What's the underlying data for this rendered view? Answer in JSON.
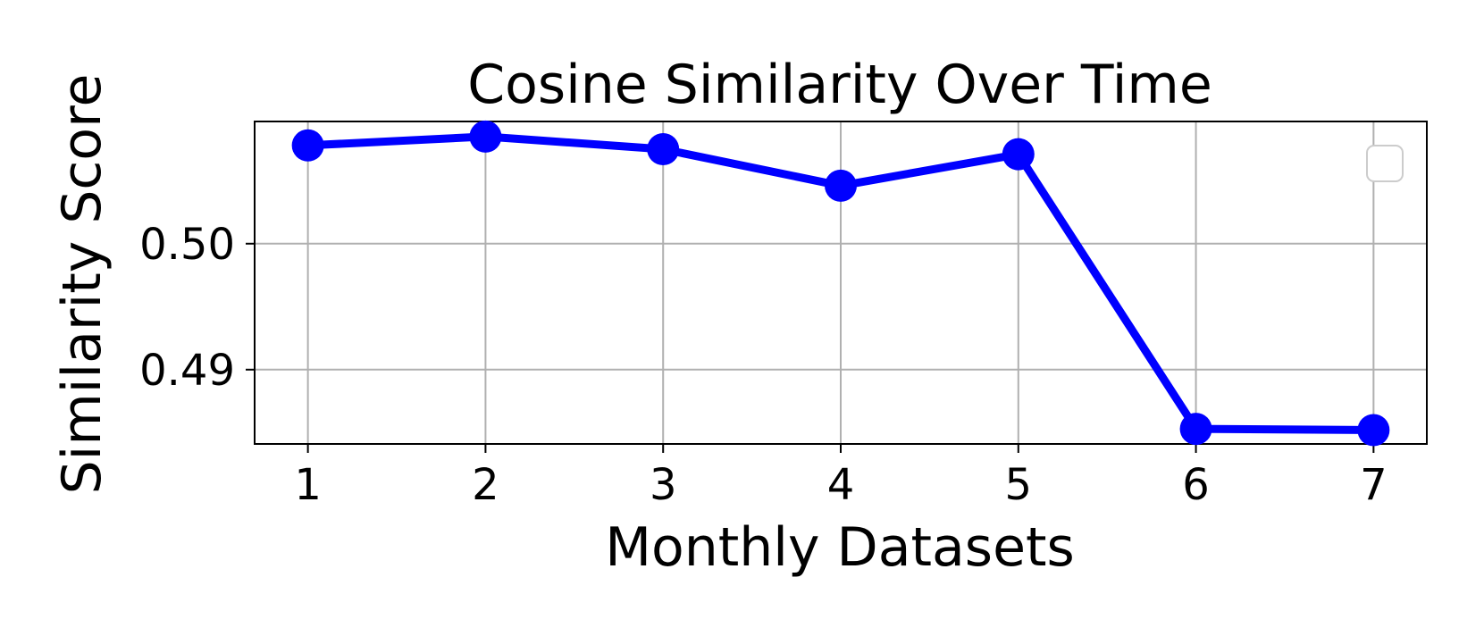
{
  "chart_data": {
    "type": "line",
    "title": "Cosine Similarity Over Time",
    "xlabel": "Monthly Datasets",
    "ylabel": "Similarity Score",
    "x": [
      1,
      2,
      3,
      4,
      5,
      6,
      7
    ],
    "x_ticks": [
      "1",
      "2",
      "3",
      "4",
      "5",
      "6",
      "7"
    ],
    "xlim": [
      0.7,
      7.3
    ],
    "y_ticks": [
      0.49,
      0.5
    ],
    "y_tick_labels": [
      "0.49",
      "0.50"
    ],
    "ylim": [
      0.4841,
      0.5097
    ],
    "grid": true,
    "legend": "upper right (empty)",
    "series": [
      {
        "values": [
          0.5078,
          0.5085,
          0.5075,
          0.5046,
          0.5071,
          0.4853,
          0.4852
        ],
        "color": "#0000ff",
        "marker": "circle"
      }
    ]
  }
}
